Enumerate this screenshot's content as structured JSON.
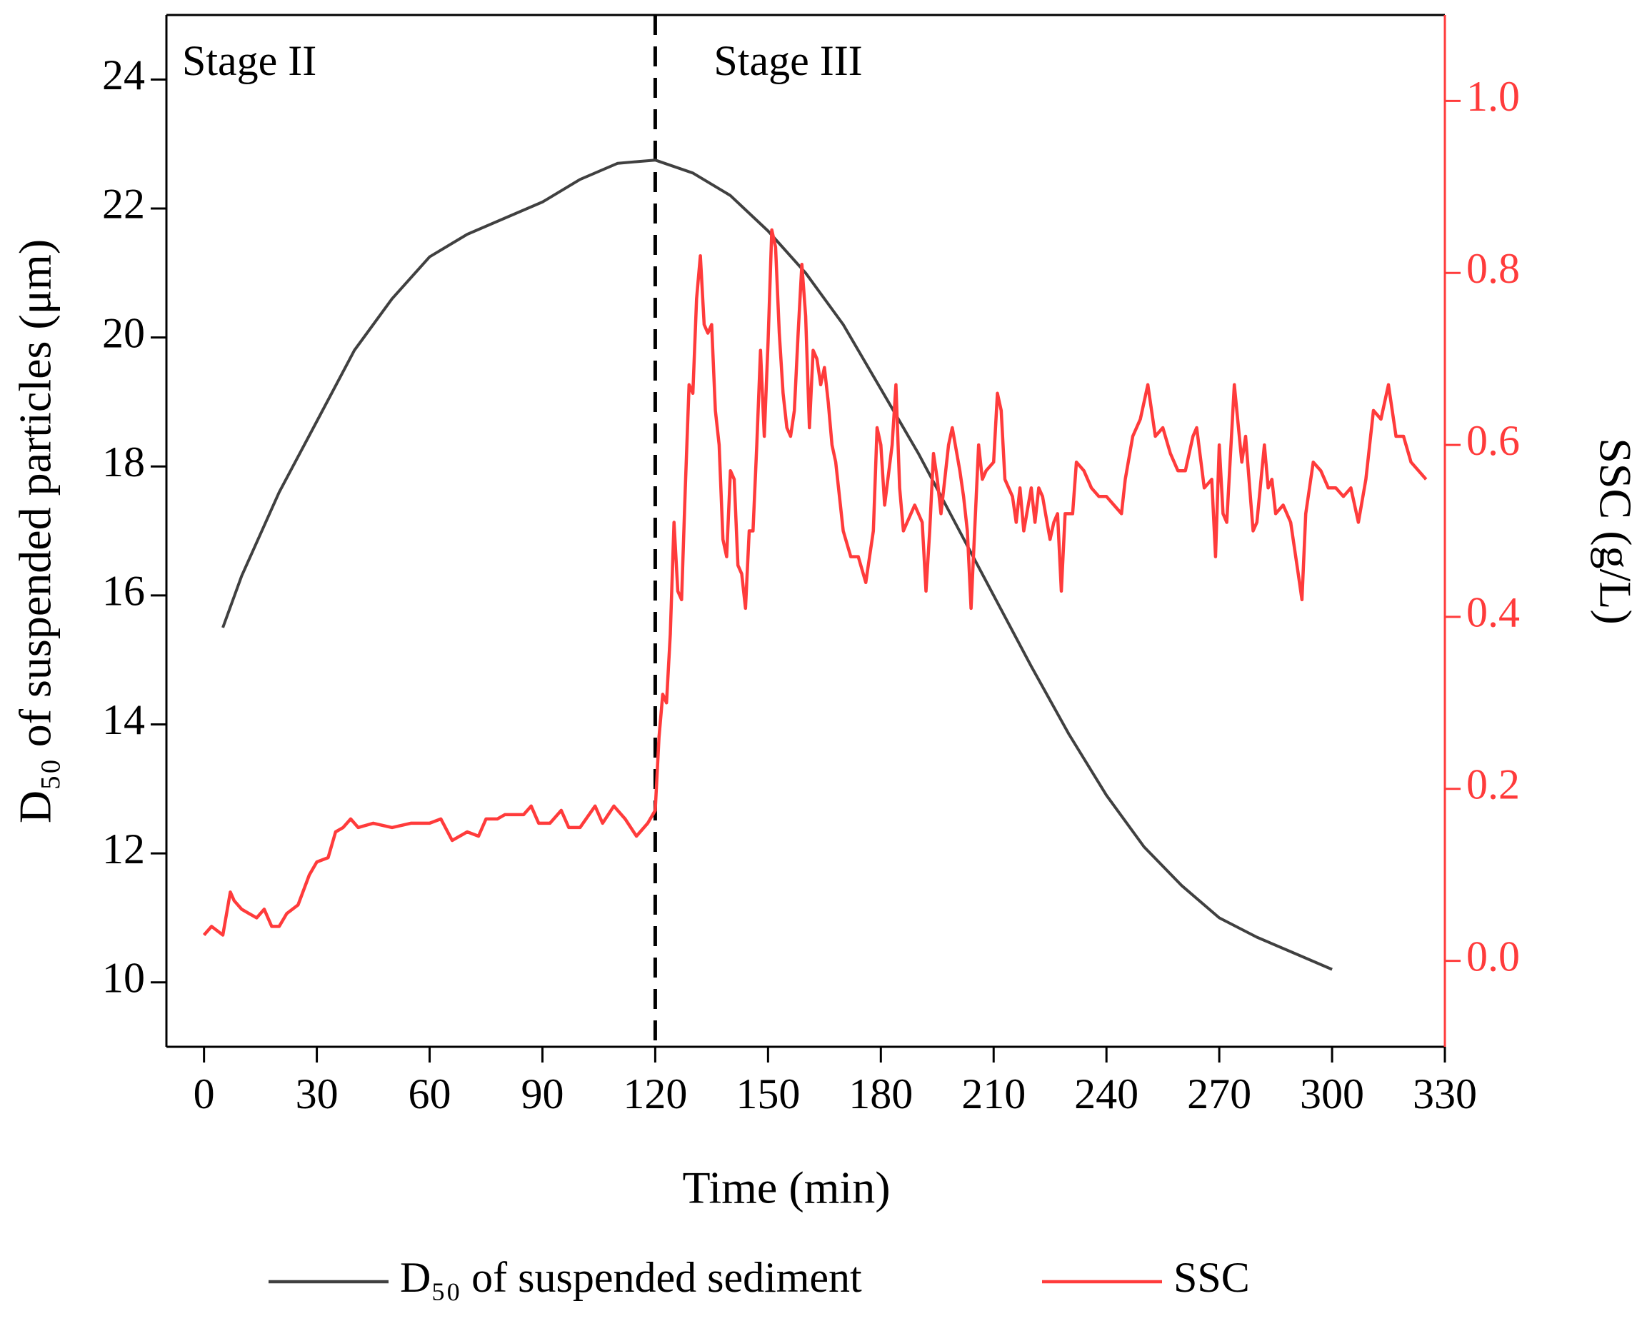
{
  "chart_data": {
    "type": "line",
    "xlabel": "Time (min)",
    "ylabel": "D₅₀ of suspended particles (μm)",
    "y2label": "SSC (g/L)",
    "xlim": [
      -10,
      330
    ],
    "xticks": [
      0,
      30,
      60,
      90,
      120,
      150,
      180,
      210,
      240,
      270,
      300,
      330
    ],
    "ylim": [
      9,
      25
    ],
    "yticks": [
      10,
      12,
      14,
      16,
      18,
      20,
      22,
      24
    ],
    "y2lim": [
      -0.1,
      1.1
    ],
    "y2ticks": [
      {
        "value": 0,
        "label": "0.0"
      },
      0.2,
      0.4,
      0.6,
      0.8,
      {
        "value": 1,
        "label": "1.0"
      }
    ],
    "divider_x": 120,
    "annotations": [
      "Stage II",
      "Stage III"
    ],
    "legend": "bottom",
    "series": [
      {
        "name": "D₅₀ of suspended sediment",
        "color": "#404040",
        "x": [
          5,
          10,
          20,
          30,
          40,
          50,
          60,
          70,
          80,
          90,
          100,
          110,
          120,
          130,
          140,
          150,
          160,
          170,
          180,
          190,
          200,
          210,
          220,
          230,
          240,
          250,
          260,
          270,
          280,
          290,
          300
        ],
        "values": [
          15.5,
          16.3,
          17.6,
          18.7,
          19.8,
          20.6,
          21.25,
          21.6,
          21.85,
          22.1,
          22.45,
          22.7,
          22.75,
          22.55,
          22.2,
          21.65,
          21.0,
          20.2,
          19.2,
          18.2,
          17.1,
          16.0,
          14.9,
          13.85,
          12.9,
          12.1,
          11.5,
          11.0,
          10.7,
          10.45,
          10.2
        ]
      },
      {
        "name": "SSC",
        "color": "#ff3b3b",
        "axis": "y2",
        "x": [
          0,
          2,
          5,
          7,
          8,
          10,
          12,
          14,
          16,
          18,
          20,
          22,
          25,
          28,
          30,
          33,
          35,
          37,
          39,
          41,
          45,
          50,
          55,
          60,
          63,
          66,
          70,
          73,
          75,
          78,
          80,
          85,
          87,
          89,
          92,
          95,
          97,
          100,
          104,
          106,
          109,
          112,
          115,
          118,
          120,
          121,
          122,
          123,
          124,
          125,
          126,
          127,
          128,
          129,
          130,
          131,
          132,
          133,
          134,
          135,
          136,
          137,
          138,
          139,
          140,
          141,
          142,
          143,
          144,
          145,
          146,
          147,
          148,
          149,
          150,
          151,
          152,
          153,
          154,
          155,
          156,
          157,
          158,
          159,
          160,
          161,
          162,
          163,
          164,
          165,
          166,
          167,
          168,
          170,
          172,
          174,
          176,
          178,
          179,
          180,
          181,
          183,
          184,
          185,
          186,
          187,
          189,
          191,
          192,
          193,
          194,
          195,
          196,
          198,
          199,
          201,
          202,
          203,
          204,
          206,
          207,
          208,
          210,
          211,
          212,
          213,
          215,
          216,
          217,
          218,
          220,
          221,
          222,
          223,
          225,
          226,
          227,
          228,
          229,
          231,
          232,
          234,
          236,
          238,
          240,
          242,
          244,
          245,
          247,
          249,
          251,
          253,
          255,
          257,
          259,
          261,
          263,
          264,
          266,
          268,
          269,
          270,
          271,
          272,
          274,
          276,
          277,
          279,
          280,
          282,
          283,
          284,
          285,
          287,
          289,
          291,
          292,
          293,
          295,
          297,
          299,
          301,
          303,
          305,
          307,
          309,
          311,
          313,
          315,
          317,
          319,
          321,
          323,
          325
        ],
        "values": [
          0.03,
          0.04,
          0.03,
          0.08,
          0.07,
          0.06,
          0.055,
          0.05,
          0.06,
          0.04,
          0.04,
          0.055,
          0.065,
          0.1,
          0.115,
          0.12,
          0.15,
          0.155,
          0.165,
          0.155,
          0.16,
          0.155,
          0.16,
          0.16,
          0.165,
          0.14,
          0.15,
          0.145,
          0.165,
          0.165,
          0.17,
          0.17,
          0.18,
          0.16,
          0.16,
          0.175,
          0.155,
          0.155,
          0.18,
          0.16,
          0.18,
          0.165,
          0.145,
          0.16,
          0.175,
          0.26,
          0.31,
          0.3,
          0.38,
          0.51,
          0.43,
          0.42,
          0.55,
          0.67,
          0.66,
          0.77,
          0.82,
          0.74,
          0.73,
          0.74,
          0.64,
          0.6,
          0.49,
          0.47,
          0.57,
          0.56,
          0.46,
          0.45,
          0.41,
          0.5,
          0.5,
          0.6,
          0.71,
          0.61,
          0.72,
          0.85,
          0.83,
          0.73,
          0.66,
          0.62,
          0.61,
          0.64,
          0.73,
          0.81,
          0.75,
          0.62,
          0.71,
          0.7,
          0.67,
          0.69,
          0.65,
          0.6,
          0.58,
          0.5,
          0.47,
          0.47,
          0.44,
          0.5,
          0.62,
          0.6,
          0.53,
          0.6,
          0.67,
          0.55,
          0.5,
          0.51,
          0.53,
          0.51,
          0.43,
          0.5,
          0.59,
          0.56,
          0.52,
          0.6,
          0.62,
          0.57,
          0.54,
          0.5,
          0.41,
          0.6,
          0.56,
          0.57,
          0.58,
          0.66,
          0.64,
          0.56,
          0.54,
          0.51,
          0.55,
          0.5,
          0.55,
          0.51,
          0.55,
          0.54,
          0.49,
          0.51,
          0.52,
          0.43,
          0.52,
          0.52,
          0.58,
          0.57,
          0.55,
          0.54,
          0.54,
          0.53,
          0.52,
          0.56,
          0.61,
          0.63,
          0.67,
          0.61,
          0.62,
          0.59,
          0.57,
          0.57,
          0.61,
          0.62,
          0.55,
          0.56,
          0.47,
          0.6,
          0.52,
          0.51,
          0.67,
          0.58,
          0.61,
          0.5,
          0.51,
          0.6,
          0.55,
          0.56,
          0.52,
          0.53,
          0.51,
          0.45,
          0.42,
          0.52,
          0.58,
          0.57,
          0.55,
          0.55,
          0.54,
          0.55,
          0.51,
          0.56,
          0.64,
          0.63,
          0.67,
          0.61,
          0.61,
          0.58,
          0.57,
          0.56
        ]
      }
    ]
  }
}
